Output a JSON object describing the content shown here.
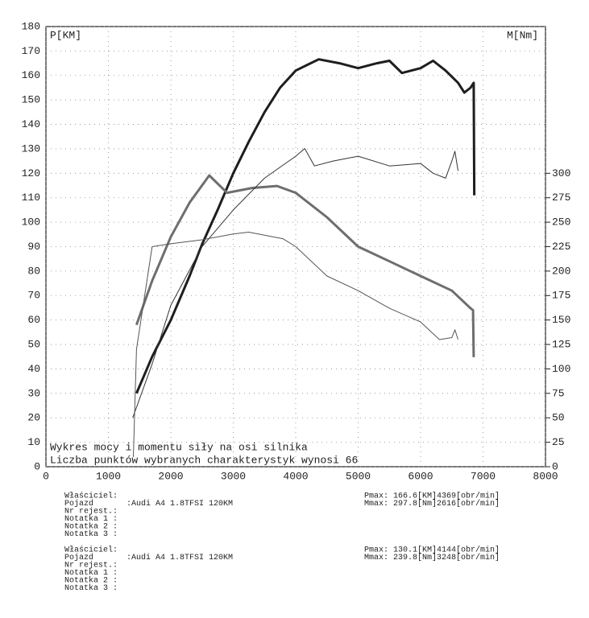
{
  "chart_data": {
    "type": "line",
    "ylabel": "P[KM]",
    "y2label": "M[Nm]",
    "annotations": [
      "Wykres mocy i momentu siły na osi silnika",
      "Liczba punktów wybranych charakterystyk wynosi 66"
    ],
    "xlim": [
      0,
      8000
    ],
    "xticks": [
      0,
      1000,
      2000,
      3000,
      4000,
      5000,
      6000,
      7000,
      8000
    ],
    "ylim": [
      0,
      180
    ],
    "yticks": [
      0,
      10,
      20,
      30,
      40,
      50,
      60,
      70,
      80,
      90,
      100,
      110,
      120,
      130,
      140,
      150,
      160,
      170,
      180
    ],
    "y2lim": [
      0,
      450
    ],
    "y2ticks": [
      0,
      25,
      50,
      75,
      100,
      125,
      150,
      175,
      200,
      225,
      250,
      275,
      300
    ],
    "grid": true,
    "series": [
      {
        "color": "#1e1e1e",
        "width": 3,
        "axis": "y",
        "x": [
          1450,
          1700,
          2000,
          2300,
          2500,
          2750,
          3000,
          3250,
          3500,
          3750,
          4000,
          4369,
          4700,
          5000,
          5300,
          5500,
          5700,
          6000,
          6200,
          6400,
          6600,
          6700,
          6800,
          6850,
          6860
        ],
        "values": [
          30,
          45,
          60,
          78,
          91,
          105,
          120,
          133,
          145,
          155,
          162,
          166.6,
          165,
          163,
          165,
          166,
          161,
          163,
          166,
          162,
          157,
          153,
          155,
          157,
          111
        ]
      },
      {
        "color": "#6e6e6e",
        "width": 3,
        "axis": "y2",
        "x": [
          1450,
          1700,
          2000,
          2300,
          2616,
          2900,
          3300,
          3700,
          4000,
          4500,
          5000,
          5500,
          6000,
          6500,
          6800,
          6840,
          6850
        ],
        "values": [
          145,
          190,
          235,
          270,
          297.8,
          280,
          285,
          287,
          280,
          255,
          225,
          210,
          195,
          180,
          162,
          160,
          112
        ]
      },
      {
        "color": "#333333",
        "width": 1,
        "axis": "y",
        "x": [
          1390,
          1700,
          2000,
          2500,
          3000,
          3500,
          4000,
          4144,
          4300,
          4600,
          5000,
          5500,
          6000,
          6200,
          6400,
          6500,
          6550,
          6600
        ],
        "values": [
          20,
          42,
          66,
          90,
          105,
          118,
          127,
          130.1,
          123,
          125,
          127,
          123,
          124,
          120,
          118,
          125,
          129,
          121
        ]
      },
      {
        "color": "#555555",
        "width": 1,
        "axis": "y2",
        "x": [
          1400,
          1450,
          1700,
          2000,
          2500,
          3000,
          3248,
          3800,
          4000,
          4500,
          5000,
          5500,
          6000,
          6300,
          6500,
          6550,
          6600
        ],
        "values": [
          10,
          120,
          225,
          228,
          232,
          238,
          239.8,
          233,
          225,
          195,
          180,
          162,
          148,
          130,
          132,
          140,
          130
        ]
      }
    ]
  },
  "report": [
    {
      "fields": [
        {
          "label": "Właściciel:"
        },
        {
          "label": "Pojazd",
          "value": ":Audi A4 1.8TFSI 120KM"
        },
        {
          "label": "Nr rejest.:"
        },
        {
          "label": "Notatka 1 :"
        },
        {
          "label": "Notatka 2 :"
        },
        {
          "label": "Notatka 3 :"
        }
      ],
      "peaks": [
        "Pmax: 166.6[KM]4369[obr/min]",
        "Mmax: 297.8[Nm]2616[obr/min]"
      ]
    },
    {
      "fields": [
        {
          "label": "Właściciel:"
        },
        {
          "label": "Pojazd",
          "value": ":Audi A4 1.8TFSI 120KM"
        },
        {
          "label": "Nr rejest.:"
        },
        {
          "label": "Notatka 1 :"
        },
        {
          "label": "Notatka 2 :"
        },
        {
          "label": "Notatka 3 :"
        }
      ],
      "peaks": [
        "Pmax: 130.1[KM]4144[obr/min]",
        "Mmax: 239.8[Nm]3248[obr/min]"
      ]
    }
  ]
}
